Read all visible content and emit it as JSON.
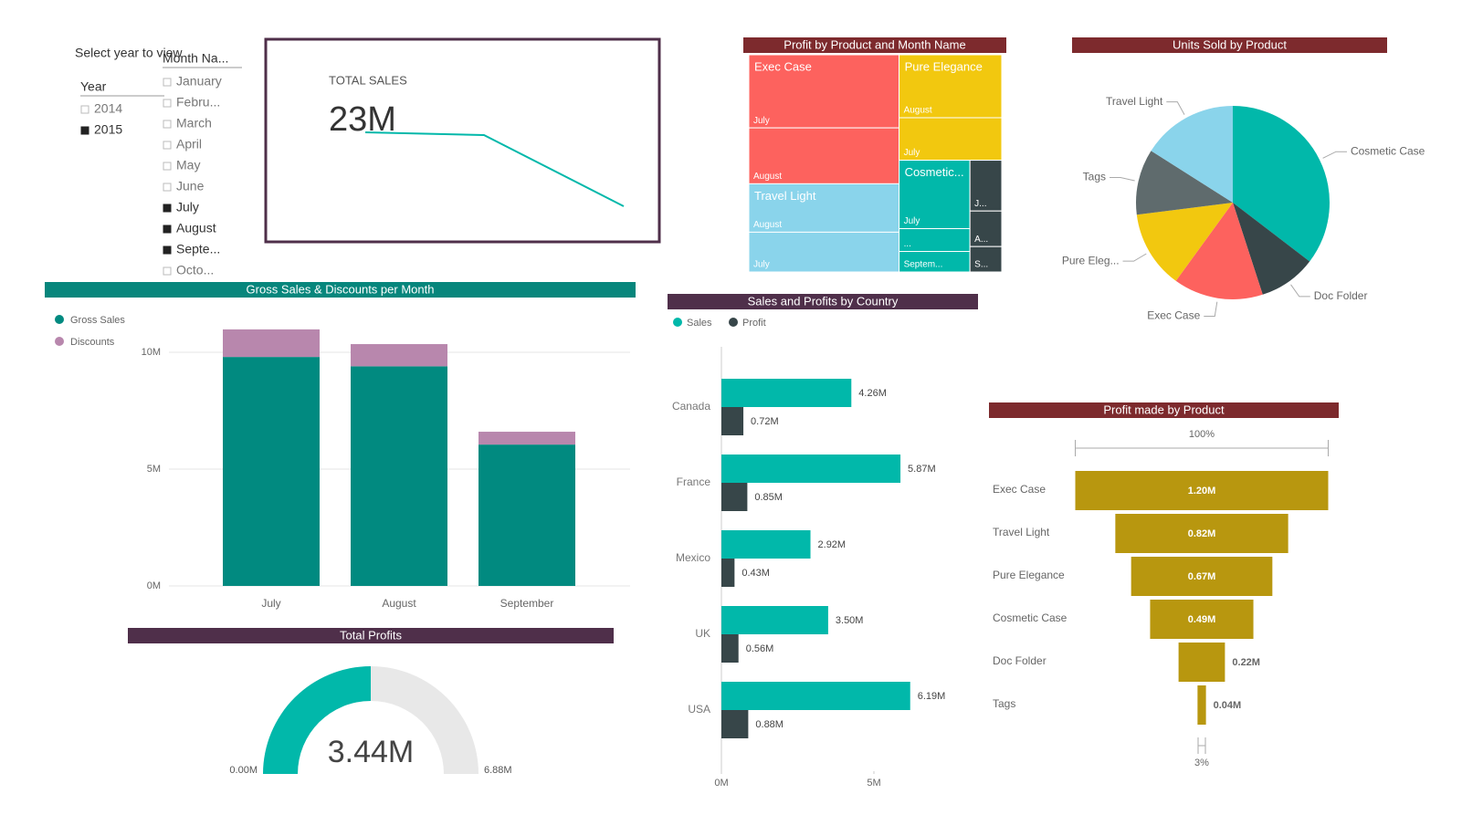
{
  "slicers": {
    "year": {
      "title": "Select year to view",
      "header": "Year",
      "items": [
        {
          "label": "2014",
          "selected": false
        },
        {
          "label": "2015",
          "selected": true
        }
      ]
    },
    "month": {
      "header": "Month Na...",
      "items": [
        {
          "label": "January",
          "selected": false
        },
        {
          "label": "Febru...",
          "selected": false
        },
        {
          "label": "March",
          "selected": false
        },
        {
          "label": "April",
          "selected": false
        },
        {
          "label": "May",
          "selected": false
        },
        {
          "label": "June",
          "selected": false
        },
        {
          "label": "July",
          "selected": true
        },
        {
          "label": "August",
          "selected": true
        },
        {
          "label": "Septe...",
          "selected": true
        },
        {
          "label": "Octo...",
          "selected": false
        }
      ]
    }
  },
  "card": {
    "label": "TOTAL SALES",
    "value": "23M"
  },
  "chart_data": [
    {
      "type": "treemap",
      "title": "Profit by  Product  and  Month Name",
      "items": [
        {
          "name": "Exec Case",
          "color": "#fd625e",
          "children": [
            {
              "name": "July",
              "value": 0.68
            },
            {
              "name": "August",
              "value": 0.52
            }
          ]
        },
        {
          "name": "Travel Light",
          "color": "#8ad4eb",
          "children": [
            {
              "name": "August",
              "value": 0.45
            },
            {
              "name": "July",
              "value": 0.37
            }
          ]
        },
        {
          "name": "Pure Elegance",
          "color": "#f2c80f",
          "children": [
            {
              "name": "August",
              "value": 0.4
            },
            {
              "name": "July",
              "value": 0.27
            }
          ]
        },
        {
          "name": "Cosmetic...",
          "color": "#01b8aa",
          "children": [
            {
              "name": "July",
              "value": 0.3
            },
            {
              "name": "...",
              "value": 0.1
            },
            {
              "name": "Septem...",
              "value": 0.09
            }
          ]
        },
        {
          "name": null,
          "color": "#374649",
          "children": [
            {
              "name": "J...",
              "value": 0.1
            },
            {
              "name": "A...",
              "value": 0.07
            },
            {
              "name": "S...",
              "value": 0.05
            }
          ]
        }
      ]
    },
    {
      "type": "pie",
      "title": "Units Sold by  Product",
      "categories": [
        "Cosmetic Case",
        "Doc Folder",
        "Exec Case",
        "Pure Eleg...",
        "Tags",
        "Travel Light"
      ],
      "values": [
        35.4,
        9.6,
        15,
        13,
        11,
        16
      ],
      "colors": [
        "#01b8aa",
        "#374649",
        "#fd625e",
        "#f2c80f",
        "#5f6b6d",
        "#8ad4eb"
      ]
    },
    {
      "type": "bar",
      "stacked": true,
      "title": "Gross Sales & Discounts per Month",
      "categories": [
        "July",
        "August",
        "September"
      ],
      "series": [
        {
          "name": "Gross Sales",
          "color": "#018a80",
          "values": [
            9.8,
            9.4,
            6.05
          ]
        },
        {
          "name": "Discounts",
          "color": "#b887ad",
          "values": [
            1.18,
            0.95,
            0.55
          ]
        }
      ],
      "ylim": [
        0,
        11.5
      ],
      "yticks": [
        {
          "value": 0,
          "label": "0M"
        },
        {
          "value": 5,
          "label": "5M"
        },
        {
          "value": 10,
          "label": "10M"
        }
      ],
      "grid": true
    },
    {
      "type": "gauge",
      "title": "Total Profits",
      "value": 3.44,
      "value_label": "3.44M",
      "color": "#01b8aa",
      "ylim": [
        0,
        6.88
      ],
      "yticks": [
        {
          "value": 0,
          "label": "0.00M"
        },
        {
          "value": 6.88,
          "label": "6.88M"
        }
      ]
    },
    {
      "type": "bar",
      "orientation": "horizontal",
      "title": "Sales and Profits by Country",
      "categories": [
        "Canada",
        "France",
        "Mexico",
        "UK",
        "USA"
      ],
      "series": [
        {
          "name": "Sales",
          "color": "#01b8aa",
          "values": [
            4.26,
            5.87,
            2.92,
            3.5,
            6.19
          ],
          "value_labels": [
            "4.26M",
            "5.87M",
            "2.92M",
            "3.50M",
            "6.19M"
          ]
        },
        {
          "name": "Profit",
          "color": "#374649",
          "values": [
            0.72,
            0.85,
            0.43,
            0.56,
            0.88
          ],
          "value_labels": [
            "0.72M",
            "0.85M",
            "0.43M",
            "0.56M",
            "0.88M"
          ]
        }
      ],
      "xlim": [
        0,
        8.4
      ],
      "xticks": [
        {
          "value": 0,
          "label": "0M"
        },
        {
          "value": 5,
          "label": "5M"
        }
      ],
      "grid": false
    },
    {
      "type": "funnel",
      "title": "Profit made by Product",
      "categories": [
        "Exec Case",
        "Travel Light",
        "Pure Elegance",
        "Cosmetic Case",
        "Doc Folder",
        "Tags"
      ],
      "values": [
        1.2,
        0.82,
        0.67,
        0.49,
        0.22,
        0.04
      ],
      "value_labels": [
        "1.20M",
        "0.82M",
        "0.67M",
        "0.49M",
        "0.22M",
        "0.04M"
      ],
      "color": "#b8970f",
      "top_label": "100%",
      "bottom_label": "3%"
    }
  ]
}
